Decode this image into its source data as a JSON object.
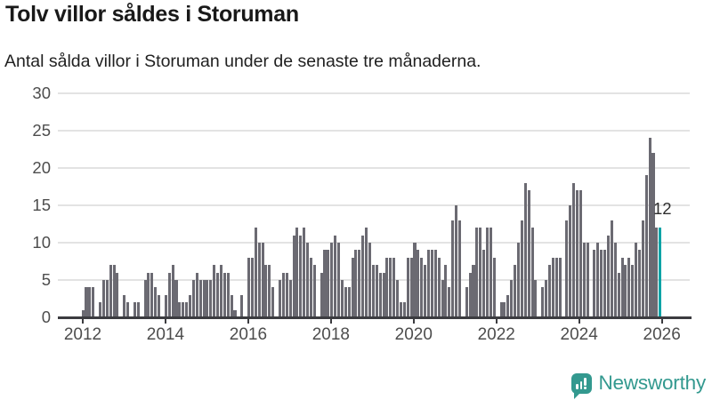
{
  "header": {
    "title": "Tolv villor såldes i Storuman",
    "subtitle": "Antal sålda villor i Storuman under de senaste tre månaderna."
  },
  "colors": {
    "bar": "#6b6a72",
    "highlight": "#0ba3a6",
    "axis": "#3c3c40",
    "grid": "#e3e3e3",
    "tick_label": "#4d4d4d",
    "logo_teal": "#33998f"
  },
  "chart_data": {
    "type": "bar",
    "title": "Tolv villor såldes i Storuman",
    "subtitle": "Antal sålda villor i Storuman under de senaste tre månaderna.",
    "ylabel": "",
    "xlabel": "",
    "ylim": [
      0,
      30
    ],
    "grid": "horizontal",
    "y_ticks": [
      0,
      5,
      10,
      15,
      20,
      25,
      30
    ],
    "x_tick_labels": [
      "2012",
      "2014",
      "2016",
      "2018",
      "2020",
      "2022",
      "2024",
      "2026"
    ],
    "x_unit": "month",
    "values": [
      1,
      4,
      4,
      4,
      0,
      2,
      5,
      5,
      7,
      7,
      6,
      0,
      3,
      2,
      0,
      2,
      2,
      0,
      5,
      6,
      6,
      4,
      3,
      0,
      3,
      6,
      7,
      5,
      2,
      2,
      2,
      3,
      5,
      6,
      5,
      5,
      5,
      5,
      7,
      6,
      7,
      6,
      6,
      3,
      1,
      0,
      3,
      0,
      8,
      8,
      12,
      10,
      10,
      7,
      7,
      4,
      0,
      5,
      6,
      6,
      5,
      11,
      12,
      11,
      12,
      10,
      8,
      7,
      0,
      6,
      9,
      9,
      10,
      11,
      10,
      5,
      4,
      4,
      8,
      9,
      9,
      11,
      12,
      10,
      7,
      7,
      6,
      6,
      8,
      8,
      8,
      5,
      2,
      2,
      8,
      8,
      10,
      9,
      8,
      7,
      9,
      9,
      9,
      8,
      5,
      7,
      4,
      13,
      15,
      13,
      0,
      4,
      6,
      7,
      12,
      12,
      9,
      12,
      12,
      8,
      0,
      2,
      2,
      3,
      5,
      7,
      10,
      13,
      18,
      17,
      12,
      5,
      0,
      4,
      5,
      7,
      8,
      8,
      8,
      0,
      13,
      15,
      18,
      17,
      17,
      10,
      10,
      0,
      9,
      10,
      9,
      9,
      11,
      13,
      10,
      6,
      8,
      7,
      8,
      7,
      10,
      9,
      13,
      19,
      24,
      22,
      12,
      12
    ],
    "highlight_last": true,
    "highlight_value_label": "12"
  },
  "annotation": {
    "label": "12"
  },
  "logo": {
    "text": "Newsworthy"
  }
}
